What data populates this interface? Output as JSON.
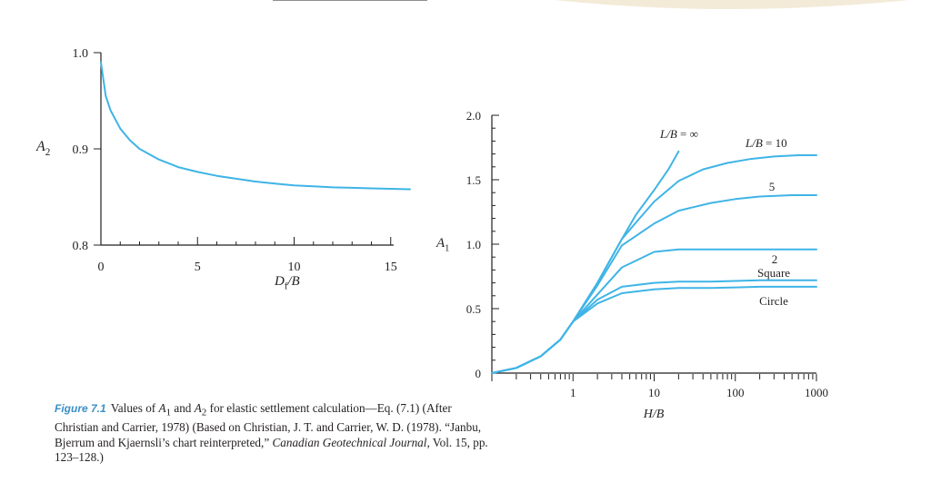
{
  "chart_data": [
    {
      "type": "line",
      "id": "A2",
      "ylabel_main": "A",
      "ylabel_sub": "2",
      "xlabel_main": "D",
      "xlabel_sub": "f",
      "xlabel_rest": "/B",
      "xlim": [
        0,
        16
      ],
      "ylim": [
        0.8,
        1.0
      ],
      "xticks": [
        "0",
        "5",
        "10",
        "15"
      ],
      "yticks": [
        "0.8",
        "0.9",
        "1.0"
      ],
      "series": [
        {
          "name": "A2",
          "x": [
            0,
            0.25,
            0.5,
            1,
            1.5,
            2,
            3,
            4,
            5,
            6,
            7,
            8,
            9,
            10,
            11,
            12,
            13,
            14,
            15,
            16
          ],
          "y": [
            0.99,
            0.955,
            0.94,
            0.921,
            0.909,
            0.9,
            0.889,
            0.881,
            0.876,
            0.872,
            0.869,
            0.866,
            0.864,
            0.862,
            0.861,
            0.86,
            0.8595,
            0.859,
            0.8585,
            0.858
          ]
        }
      ]
    },
    {
      "type": "line",
      "id": "A1",
      "xscale": "log",
      "ylabel_main": "A",
      "ylabel_sub": "1",
      "xlabel": "H/B",
      "xlim": [
        0.1,
        1000
      ],
      "ylim": [
        0,
        2.0
      ],
      "xticks": [
        "1",
        "10",
        "100",
        "1000"
      ],
      "yticks": [
        "0",
        "0.5",
        "1.0",
        "1.5",
        "2.0"
      ],
      "series": [
        {
          "name": "L/B = ∞",
          "label": "L/B = ∞",
          "x": [
            0.1,
            0.2,
            0.4,
            0.7,
            1,
            2,
            4,
            6,
            10,
            15,
            20
          ],
          "y": [
            0,
            0.04,
            0.13,
            0.26,
            0.4,
            0.7,
            1.04,
            1.23,
            1.42,
            1.58,
            1.72
          ]
        },
        {
          "name": "L/B = 10",
          "label": "L/B = 10",
          "x": [
            0.1,
            0.2,
            0.4,
            0.7,
            1,
            2,
            4,
            6,
            10,
            20,
            40,
            80,
            150,
            300,
            600,
            1000
          ],
          "y": [
            0,
            0.04,
            0.13,
            0.26,
            0.4,
            0.7,
            1.04,
            1.17,
            1.33,
            1.49,
            1.58,
            1.63,
            1.66,
            1.68,
            1.69,
            1.69
          ]
        },
        {
          "name": "5",
          "label": "5",
          "x": [
            0.1,
            0.2,
            0.4,
            0.7,
            1,
            2,
            4,
            10,
            20,
            50,
            100,
            200,
            500,
            1000
          ],
          "y": [
            0,
            0.04,
            0.13,
            0.26,
            0.4,
            0.68,
            0.99,
            1.16,
            1.26,
            1.32,
            1.35,
            1.37,
            1.38,
            1.38
          ]
        },
        {
          "name": "2",
          "label": "2",
          "x": [
            0.1,
            0.2,
            0.4,
            0.7,
            1,
            2,
            4,
            10,
            20,
            50,
            100,
            200,
            500,
            1000
          ],
          "y": [
            0,
            0.04,
            0.13,
            0.26,
            0.4,
            0.61,
            0.82,
            0.94,
            0.96,
            0.96,
            0.96,
            0.96,
            0.96,
            0.96
          ]
        },
        {
          "name": "Square",
          "label": "Square",
          "x": [
            0.1,
            0.2,
            0.4,
            0.7,
            1,
            2,
            4,
            10,
            20,
            50,
            100,
            200,
            500,
            1000
          ],
          "y": [
            0,
            0.04,
            0.13,
            0.26,
            0.4,
            0.57,
            0.67,
            0.7,
            0.71,
            0.71,
            0.715,
            0.72,
            0.72,
            0.72
          ]
        },
        {
          "name": "Circle",
          "label": "Circle",
          "x": [
            0.1,
            0.2,
            0.4,
            0.7,
            1,
            2,
            4,
            10,
            20,
            50,
            100,
            200,
            500,
            1000
          ],
          "y": [
            0,
            0.04,
            0.13,
            0.26,
            0.4,
            0.54,
            0.62,
            0.65,
            0.66,
            0.66,
            0.665,
            0.67,
            0.67,
            0.67
          ]
        }
      ]
    }
  ],
  "caption": {
    "label": "Figure 7.1",
    "t1": "Values of ",
    "a1": "A",
    "a1sub": "1",
    "t2": " and ",
    "a2": "A",
    "a2sub": "2",
    "t3": " for elastic settlement calculation—Eq. (7.1) (After Christian and Carrier, 1978) (Based on Christian, J. T. and Carrier, W. D. (1978). “Janbu, Bjerrum and Kjaernsli’s chart reinterpreted,” ",
    "journal": "Canadian Geotechnical Journal",
    "t4": ", Vol. 15, pp. 123–128.)"
  },
  "colors": {
    "curve": "#3fb4e6",
    "ink": "#231f20",
    "caption_label": "#3a8fc7"
  }
}
